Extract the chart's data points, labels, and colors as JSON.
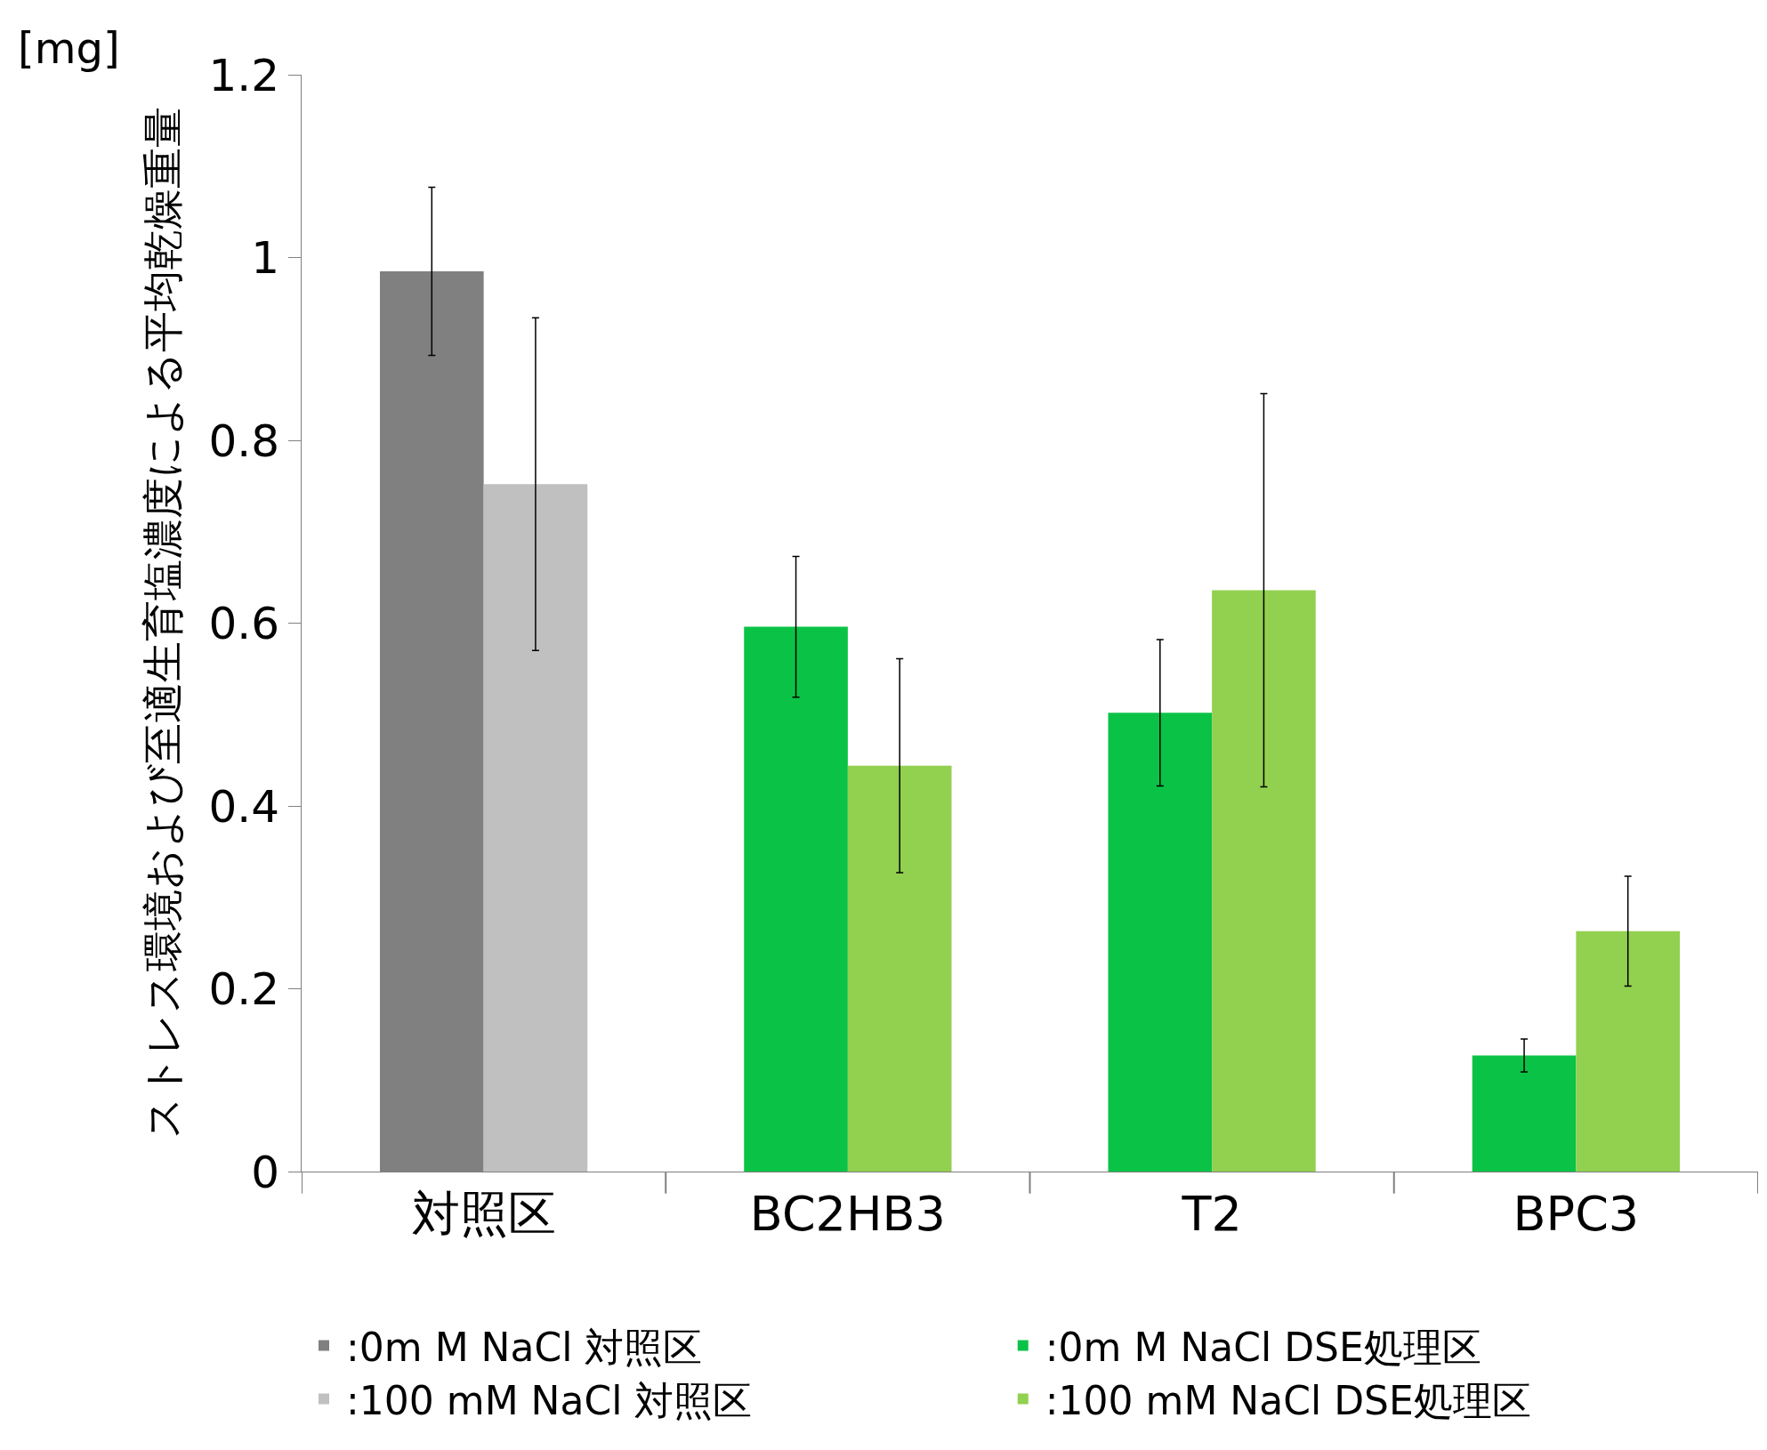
{
  "chart_data": {
    "type": "bar",
    "ylabel": "ストレス環境および至適生育塩濃度による平均乾燥重量",
    "annotations": [
      "[mg]"
    ],
    "categories": [
      "対照区",
      "BC2HB3",
      "T2",
      "BPC3"
    ],
    "series": [
      {
        "name": ":0m M NaCl 対照区",
        "color": "#808080",
        "values": [
          0.985,
          null,
          null,
          null
        ],
        "errors": [
          0.092,
          null,
          null,
          null
        ]
      },
      {
        "name": ":0m M NaCl DSE処理区",
        "color": "#0ac346",
        "values": [
          null,
          0.596,
          0.502,
          0.127
        ],
        "errors": [
          null,
          0.077,
          0.08,
          0.018
        ]
      },
      {
        "name": ":100 mM NaCl 対照区",
        "color": "#c0c0c0",
        "values": [
          0.752,
          null,
          null,
          null
        ],
        "errors": [
          0.182,
          null,
          null,
          null
        ]
      },
      {
        "name": ":100 mM NaCl DSE処理区",
        "color": "#92d050",
        "values": [
          null,
          0.444,
          0.636,
          0.263
        ],
        "errors": [
          null,
          0.117,
          0.215,
          0.06
        ]
      }
    ],
    "ylim": [
      0,
      1.2
    ],
    "yticks": [
      0,
      0.2,
      0.4,
      0.6,
      0.8,
      1,
      1.2
    ],
    "legend": "bottom"
  }
}
